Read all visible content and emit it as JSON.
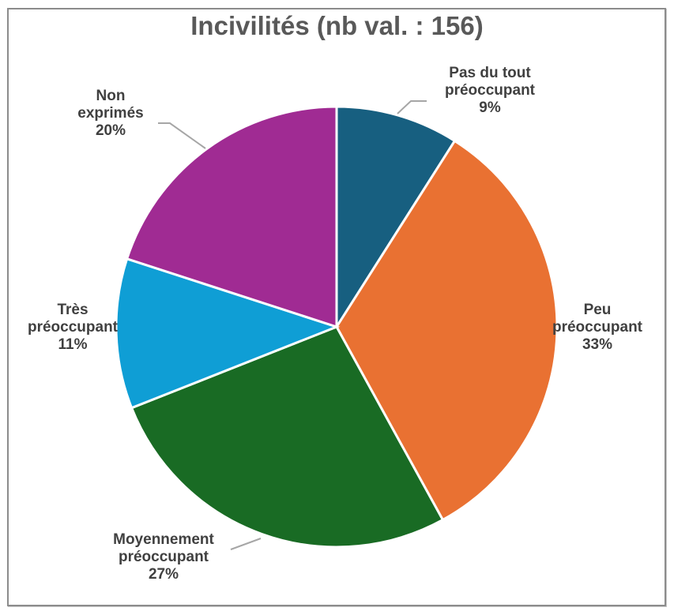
{
  "chart_data": {
    "type": "pie",
    "title": "Incivilités (nb val. : 156)",
    "total": 156,
    "slices": [
      {
        "label": "Pas du tout préoccupant",
        "line1": "Pas du tout",
        "line2": "préoccupant",
        "pct": "9%",
        "value": 9,
        "color": "#175f80"
      },
      {
        "label": "Peu préoccupant",
        "line1": "Peu",
        "line2": "préoccupant",
        "pct": "33%",
        "value": 33,
        "color": "#e97132"
      },
      {
        "label": "Moyennement préoccupant",
        "line1": "Moyennement",
        "line2": "préoccupant",
        "pct": "27%",
        "value": 27,
        "color": "#196b24"
      },
      {
        "label": "Très préoccupant",
        "line1": "Très",
        "line2": "préoccupant",
        "pct": "11%",
        "value": 11,
        "color": "#0f9ed5"
      },
      {
        "label": "Non exprimés",
        "line1": "Non",
        "line2": "exprimés",
        "pct": "20%",
        "value": 20,
        "color": "#a02b93"
      }
    ],
    "legend": "none (data labels)"
  }
}
